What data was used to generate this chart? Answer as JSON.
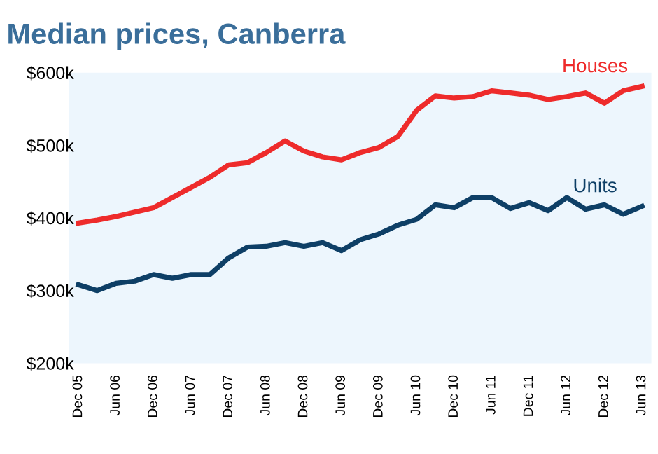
{
  "chart_data": {
    "type": "line",
    "title": "Median prices, Canberra",
    "categories": [
      "Dec 05",
      null,
      "Jun 06",
      null,
      "Dec 06",
      null,
      "Jun 07",
      null,
      "Dec 07",
      null,
      "Jun 08",
      null,
      "Dec 08",
      null,
      "Jun 09",
      null,
      "Dec 09",
      null,
      "Jun 10",
      null,
      "Dec 10",
      null,
      "Jun 11",
      null,
      "Dec 11",
      null,
      "Jun 12",
      null,
      "Dec 12",
      null,
      "Jun 13"
    ],
    "series": [
      {
        "name": "Houses",
        "color": "#ee2b2b",
        "values": [
          393,
          397,
          402,
          408,
          414,
          428,
          442,
          456,
          473,
          476,
          490,
          506,
          492,
          484,
          480,
          490,
          497,
          512,
          548,
          568,
          565,
          567,
          575,
          572,
          569,
          563,
          567,
          572,
          558,
          575,
          581
        ]
      },
      {
        "name": "Units",
        "color": "#0e3f66",
        "values": [
          308,
          300,
          310,
          313,
          322,
          317,
          322,
          322,
          345,
          360,
          361,
          366,
          361,
          366,
          355,
          370,
          378,
          390,
          398,
          418,
          414,
          428,
          428,
          413,
          421,
          410,
          428,
          412,
          418,
          405,
          416
        ]
      }
    ],
    "ylim": [
      200,
      600
    ],
    "yticks": [
      {
        "value": 200,
        "label": "$200k"
      },
      {
        "value": 300,
        "label": "$300k"
      },
      {
        "value": 400,
        "label": "$400k"
      },
      {
        "value": 500,
        "label": "$500k"
      },
      {
        "value": 600,
        "label": "$600k"
      }
    ],
    "grid": false,
    "legend": false,
    "marker": "none",
    "line_style": "solid"
  }
}
